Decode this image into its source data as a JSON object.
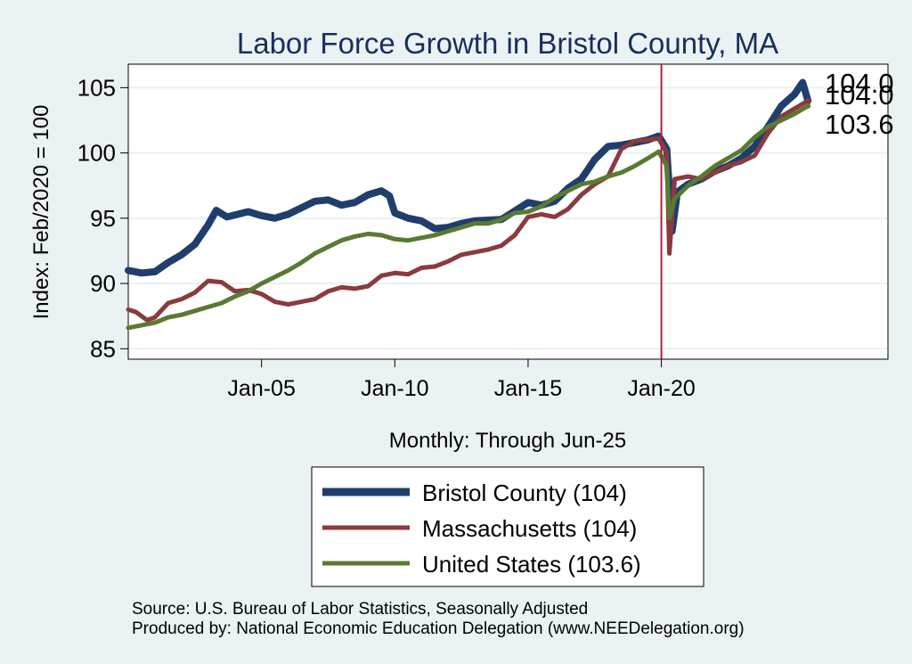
{
  "chart_data": {
    "type": "line",
    "title": "Labor Force Growth in Bristol  County, MA",
    "ylabel": "Index: Feb/2020 = 100",
    "xlabel": "Monthly: Through Jun-25",
    "x_ticks": [
      "Jan-05",
      "Jan-10",
      "Jan-15",
      "Jan-20"
    ],
    "x_range": [
      2000.0,
      2028.5
    ],
    "ylim": [
      84.2,
      106.8
    ],
    "y_ticks": [
      85,
      90,
      95,
      100,
      105
    ],
    "grid": true,
    "legend_position": "bottom",
    "reference_line": {
      "x": 2020.0,
      "label": "Jan-20"
    },
    "series": [
      {
        "name": "Bristol  County (104)",
        "color": "#1f3e6b",
        "end_label": "104.0",
        "points": [
          [
            2000.0,
            91.0
          ],
          [
            2000.5,
            90.8
          ],
          [
            2001.0,
            90.9
          ],
          [
            2001.5,
            91.6
          ],
          [
            2002.0,
            92.2
          ],
          [
            2002.5,
            93.0
          ],
          [
            2003.0,
            94.5
          ],
          [
            2003.3,
            95.6
          ],
          [
            2003.7,
            95.1
          ],
          [
            2004.5,
            95.5
          ],
          [
            2005.0,
            95.2
          ],
          [
            2005.5,
            95.0
          ],
          [
            2006.0,
            95.3
          ],
          [
            2006.5,
            95.8
          ],
          [
            2007.0,
            96.3
          ],
          [
            2007.5,
            96.4
          ],
          [
            2008.0,
            96.0
          ],
          [
            2008.5,
            96.2
          ],
          [
            2009.0,
            96.8
          ],
          [
            2009.5,
            97.1
          ],
          [
            2009.8,
            96.7
          ],
          [
            2010.0,
            95.4
          ],
          [
            2010.5,
            95.0
          ],
          [
            2011.0,
            94.8
          ],
          [
            2011.5,
            94.2
          ],
          [
            2012.0,
            94.3
          ],
          [
            2012.5,
            94.6
          ],
          [
            2013.0,
            94.8
          ],
          [
            2014.0,
            94.9
          ],
          [
            2015.0,
            96.2
          ],
          [
            2015.5,
            96.0
          ],
          [
            2016.0,
            96.3
          ],
          [
            2016.5,
            97.3
          ],
          [
            2017.0,
            98.0
          ],
          [
            2017.5,
            99.5
          ],
          [
            2018.0,
            100.5
          ],
          [
            2018.5,
            100.6
          ],
          [
            2019.0,
            100.8
          ],
          [
            2019.5,
            101.0
          ],
          [
            2019.9,
            101.3
          ],
          [
            2020.2,
            100.3
          ],
          [
            2020.4,
            94.0
          ],
          [
            2020.6,
            97.0
          ],
          [
            2021.0,
            97.6
          ],
          [
            2021.5,
            98.0
          ],
          [
            2022.0,
            98.6
          ],
          [
            2022.5,
            99.0
          ],
          [
            2023.0,
            99.6
          ],
          [
            2023.5,
            100.5
          ],
          [
            2024.0,
            102.0
          ],
          [
            2024.5,
            103.6
          ],
          [
            2025.0,
            104.5
          ],
          [
            2025.3,
            105.4
          ],
          [
            2025.5,
            104.0
          ]
        ]
      },
      {
        "name": "Massachusetts (104)",
        "color": "#8b3a3f",
        "end_label": "104.0",
        "points": [
          [
            2000.0,
            88.0
          ],
          [
            2000.3,
            87.8
          ],
          [
            2000.7,
            87.2
          ],
          [
            2001.0,
            87.4
          ],
          [
            2001.5,
            88.5
          ],
          [
            2002.0,
            88.8
          ],
          [
            2002.5,
            89.3
          ],
          [
            2003.0,
            90.2
          ],
          [
            2003.5,
            90.1
          ],
          [
            2004.0,
            89.4
          ],
          [
            2004.5,
            89.5
          ],
          [
            2005.0,
            89.2
          ],
          [
            2005.5,
            88.6
          ],
          [
            2006.0,
            88.4
          ],
          [
            2006.5,
            88.6
          ],
          [
            2007.0,
            88.8
          ],
          [
            2007.5,
            89.4
          ],
          [
            2008.0,
            89.7
          ],
          [
            2008.5,
            89.6
          ],
          [
            2009.0,
            89.8
          ],
          [
            2009.5,
            90.6
          ],
          [
            2010.0,
            90.8
          ],
          [
            2010.5,
            90.7
          ],
          [
            2011.0,
            91.2
          ],
          [
            2011.5,
            91.3
          ],
          [
            2012.0,
            91.7
          ],
          [
            2012.5,
            92.2
          ],
          [
            2013.0,
            92.4
          ],
          [
            2013.5,
            92.6
          ],
          [
            2014.0,
            92.9
          ],
          [
            2014.5,
            93.7
          ],
          [
            2015.0,
            95.1
          ],
          [
            2015.5,
            95.3
          ],
          [
            2016.0,
            95.1
          ],
          [
            2016.5,
            95.7
          ],
          [
            2017.0,
            96.8
          ],
          [
            2017.5,
            97.6
          ],
          [
            2018.0,
            98.2
          ],
          [
            2018.5,
            100.3
          ],
          [
            2019.0,
            100.9
          ],
          [
            2019.5,
            101.0
          ],
          [
            2019.9,
            101.1
          ],
          [
            2020.2,
            100.0
          ],
          [
            2020.3,
            92.3
          ],
          [
            2020.5,
            98.0
          ],
          [
            2021.0,
            98.2
          ],
          [
            2021.5,
            98.0
          ],
          [
            2022.0,
            98.5
          ],
          [
            2022.5,
            99.0
          ],
          [
            2023.0,
            99.3
          ],
          [
            2023.5,
            99.8
          ],
          [
            2024.0,
            101.5
          ],
          [
            2024.5,
            102.8
          ],
          [
            2025.0,
            103.4
          ],
          [
            2025.5,
            104.0
          ]
        ]
      },
      {
        "name": "United States (103.6)",
        "color": "#5a7a33",
        "end_label": "103.6",
        "points": [
          [
            2000.0,
            86.6
          ],
          [
            2000.5,
            86.8
          ],
          [
            2001.0,
            87.0
          ],
          [
            2001.5,
            87.4
          ],
          [
            2002.0,
            87.6
          ],
          [
            2002.5,
            87.9
          ],
          [
            2003.0,
            88.2
          ],
          [
            2003.5,
            88.5
          ],
          [
            2004.0,
            89.0
          ],
          [
            2004.5,
            89.4
          ],
          [
            2005.0,
            90.0
          ],
          [
            2005.5,
            90.5
          ],
          [
            2006.0,
            91.0
          ],
          [
            2006.5,
            91.6
          ],
          [
            2007.0,
            92.3
          ],
          [
            2007.5,
            92.8
          ],
          [
            2008.0,
            93.3
          ],
          [
            2008.5,
            93.6
          ],
          [
            2009.0,
            93.8
          ],
          [
            2009.5,
            93.7
          ],
          [
            2010.0,
            93.4
          ],
          [
            2010.5,
            93.3
          ],
          [
            2011.0,
            93.5
          ],
          [
            2011.5,
            93.7
          ],
          [
            2012.0,
            94.0
          ],
          [
            2012.5,
            94.3
          ],
          [
            2013.0,
            94.6
          ],
          [
            2013.5,
            94.6
          ],
          [
            2014.0,
            94.9
          ],
          [
            2014.5,
            95.4
          ],
          [
            2015.0,
            95.5
          ],
          [
            2015.5,
            95.9
          ],
          [
            2016.0,
            96.6
          ],
          [
            2016.5,
            97.1
          ],
          [
            2017.0,
            97.6
          ],
          [
            2017.5,
            97.8
          ],
          [
            2018.0,
            98.2
          ],
          [
            2018.5,
            98.5
          ],
          [
            2019.0,
            99.0
          ],
          [
            2019.5,
            99.6
          ],
          [
            2019.9,
            100.1
          ],
          [
            2020.2,
            99.0
          ],
          [
            2020.3,
            95.0
          ],
          [
            2020.5,
            96.5
          ],
          [
            2021.0,
            97.5
          ],
          [
            2021.5,
            98.2
          ],
          [
            2022.0,
            99.0
          ],
          [
            2022.5,
            99.6
          ],
          [
            2023.0,
            100.2
          ],
          [
            2023.5,
            101.2
          ],
          [
            2024.0,
            102.0
          ],
          [
            2024.5,
            102.5
          ],
          [
            2025.0,
            103.0
          ],
          [
            2025.5,
            103.6
          ]
        ]
      }
    ]
  },
  "source_note": "Source: U.S. Bureau of Labor Statistics, Seasonally Adjusted",
  "producer_note": "Produced by: National Economic Education Delegation (www.NEEDelegation.org)",
  "colors": {
    "background": "#eaf2f3",
    "plot": "#ffffff",
    "grid": "#eaf2f3",
    "reference_line": "#a6253b"
  }
}
